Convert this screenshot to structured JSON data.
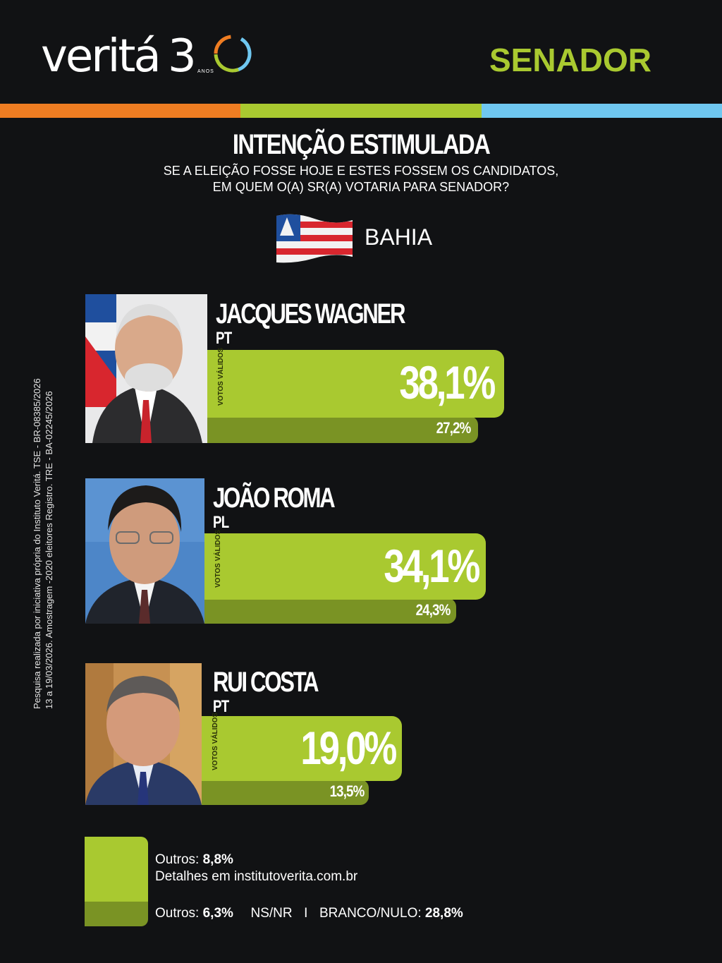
{
  "brand": {
    "logo_text": "veritá",
    "logo_number": "30",
    "logo_sub": "ANOS"
  },
  "header": {
    "label": "SENADOR"
  },
  "colors": {
    "stripe_1": "#ef7d22",
    "stripe_2": "#a9c930",
    "stripe_3": "#6fc7f0",
    "bar_valid": "#a9c930",
    "bar_total": "#7a9324"
  },
  "title": "INTENÇÃO ESTIMULADA",
  "question_line1": "SE A ELEIÇÃO FOSSE HOJE E ESTES FOSSEM OS CANDIDATOS,",
  "question_line2": "EM QUEM O(A) SR(A) VOTARIA PARA SENADOR?",
  "state": "BAHIA",
  "methodology_line1": "Pesquisa realizada por iniciativa própria do Instituto Veritá. TSE - BR-08385/2026",
  "methodology_line2": "13 a 19/03/2026. Amostragem -2020 eleitores Registro. TRE - BA-02245/2026",
  "bar_series_label": "VOTOS VÁLIDOS",
  "chart_data": {
    "type": "bar",
    "orientation": "horizontal",
    "categories": [
      "JACQUES WAGNER",
      "JOÃO ROMA",
      "RUI COSTA"
    ],
    "parties": [
      "PT",
      "PL",
      "PT"
    ],
    "series": [
      {
        "name": "VOTOS VÁLIDOS",
        "values": [
          38.1,
          34.1,
          19.0
        ],
        "labels": [
          "38,1%",
          "34,1%",
          "19,0%"
        ]
      },
      {
        "name": "",
        "values": [
          27.2,
          24.3,
          13.5
        ],
        "labels": [
          "27,2%",
          "24,3%",
          "13,5%"
        ]
      }
    ],
    "unit": "%"
  },
  "footer": {
    "outros_valid_label": "Outros:",
    "outros_valid_value": "8,8%",
    "details": "Detalhes em institutoverita.com.br",
    "outros_total_label": "Outros:",
    "outros_total_value": "6,3%",
    "nsnr": "NS/NR",
    "separator": "I",
    "branco_label": "BRANCO/NULO:",
    "branco_value": "28,8%"
  }
}
